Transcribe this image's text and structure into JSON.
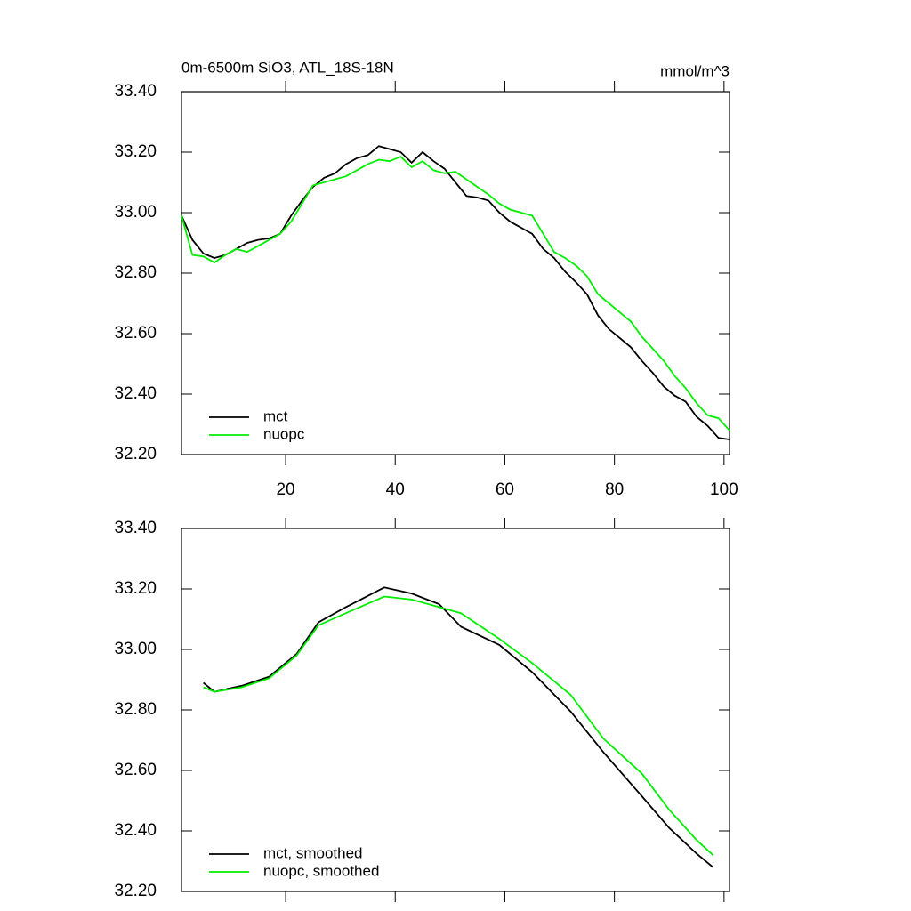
{
  "chart_data": [
    {
      "type": "line",
      "title": "0m-6500m SiO3, ATL_18S-18N",
      "units": "mmol/m^3",
      "xlim": [
        1,
        101
      ],
      "ylim": [
        32.2,
        33.4
      ],
      "xticks": [
        20,
        40,
        60,
        80,
        100
      ],
      "show_xtick_labels": true,
      "yticks": [
        {
          "value": 32.2,
          "label": "32.20"
        },
        {
          "value": 32.4,
          "label": "32.40"
        },
        {
          "value": 32.6,
          "label": "32.60"
        },
        {
          "value": 32.8,
          "label": "32.80"
        },
        {
          "value": 33.0,
          "label": "33.00"
        },
        {
          "value": 33.2,
          "label": "33.20"
        },
        {
          "value": 33.4,
          "label": "33.40"
        }
      ],
      "x": [
        1,
        3,
        5,
        7,
        9,
        11,
        13,
        15,
        17,
        19,
        21,
        23,
        25,
        27,
        29,
        31,
        33,
        35,
        37,
        39,
        41,
        43,
        45,
        47,
        49,
        51,
        53,
        55,
        57,
        59,
        61,
        63,
        65,
        67,
        69,
        71,
        73,
        75,
        77,
        79,
        81,
        83,
        85,
        87,
        89,
        91,
        93,
        95,
        97,
        99,
        101
      ],
      "series": [
        {
          "name": "mct",
          "color": "#000000",
          "values": [
            32.99,
            32.91,
            32.865,
            32.85,
            32.86,
            32.88,
            32.9,
            32.91,
            32.915,
            32.93,
            32.99,
            33.04,
            33.085,
            33.115,
            33.13,
            33.16,
            33.18,
            33.19,
            33.22,
            33.21,
            33.2,
            33.165,
            33.2,
            33.17,
            33.145,
            33.1,
            33.055,
            33.05,
            33.04,
            33.0,
            32.97,
            32.95,
            32.93,
            32.88,
            32.85,
            32.805,
            32.77,
            32.73,
            32.66,
            32.615,
            32.585,
            32.555,
            32.51,
            32.47,
            32.425,
            32.395,
            32.375,
            32.325,
            32.295,
            32.255,
            32.25
          ]
        },
        {
          "name": "nuopc",
          "color": "#00ee00",
          "values": [
            32.99,
            32.86,
            32.855,
            32.835,
            32.86,
            32.88,
            32.87,
            32.89,
            32.91,
            32.93,
            32.97,
            33.03,
            33.09,
            33.1,
            33.11,
            33.12,
            33.14,
            33.16,
            33.175,
            33.17,
            33.185,
            33.15,
            33.17,
            33.14,
            33.13,
            33.135,
            33.11,
            33.085,
            33.06,
            33.03,
            33.01,
            33.0,
            32.99,
            32.93,
            32.87,
            32.85,
            32.825,
            32.79,
            32.73,
            32.7,
            32.67,
            32.64,
            32.59,
            32.55,
            32.51,
            32.46,
            32.42,
            32.37,
            32.33,
            32.32,
            32.28
          ]
        }
      ]
    },
    {
      "type": "line",
      "xlim": [
        1,
        101
      ],
      "ylim": [
        32.2,
        33.4
      ],
      "xticks": [
        20,
        40,
        60,
        80,
        100
      ],
      "show_xtick_labels": false,
      "yticks": [
        {
          "value": 32.2,
          "label": "32.20"
        },
        {
          "value": 32.4,
          "label": "32.40"
        },
        {
          "value": 32.6,
          "label": "32.60"
        },
        {
          "value": 32.8,
          "label": "32.80"
        },
        {
          "value": 33.0,
          "label": "33.00"
        },
        {
          "value": 33.2,
          "label": "33.20"
        },
        {
          "value": 33.4,
          "label": "33.40"
        }
      ],
      "x": [
        5,
        7,
        12,
        17,
        22,
        26,
        31,
        38,
        43,
        48,
        52,
        59,
        65,
        72,
        78,
        85,
        90,
        95,
        98
      ],
      "series": [
        {
          "name": "mct, smoothed",
          "color": "#000000",
          "values": [
            32.89,
            32.86,
            32.88,
            32.91,
            32.985,
            33.09,
            33.14,
            33.205,
            33.185,
            33.15,
            33.075,
            33.015,
            32.925,
            32.795,
            32.66,
            32.515,
            32.41,
            32.325,
            32.28
          ]
        },
        {
          "name": "nuopc, smoothed",
          "color": "#00ee00",
          "values": [
            32.875,
            32.86,
            32.875,
            32.905,
            32.98,
            33.08,
            33.12,
            33.175,
            33.165,
            33.14,
            33.12,
            33.035,
            32.955,
            32.85,
            32.705,
            32.59,
            32.47,
            32.37,
            32.32
          ]
        }
      ]
    }
  ]
}
